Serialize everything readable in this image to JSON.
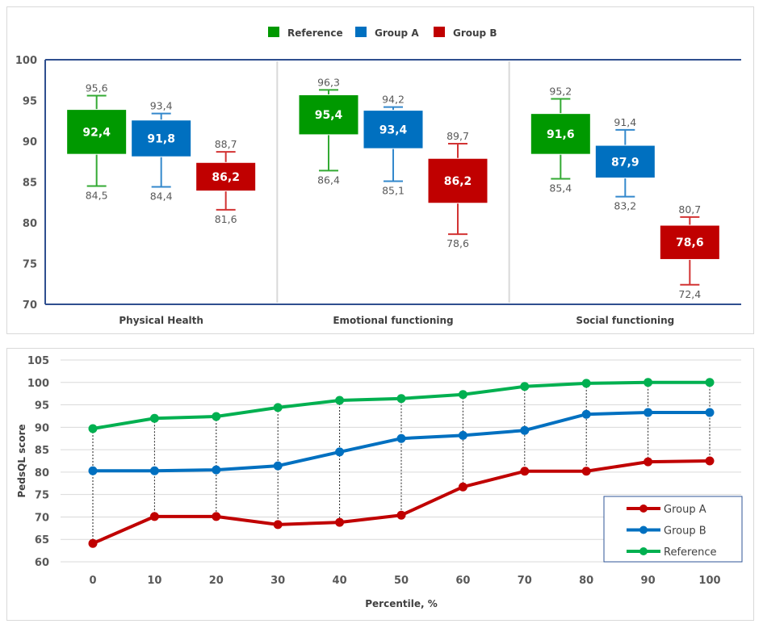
{
  "chart_data": [
    {
      "type": "box",
      "title": "",
      "xlabel": "",
      "ylabel": "",
      "ylim": [
        70,
        100
      ],
      "yticks": [
        70,
        75,
        80,
        85,
        90,
        95,
        100
      ],
      "grid": false,
      "legend_position": "top-center",
      "categories": [
        "Physical Health",
        "Emotional functioning",
        "Social functioning"
      ],
      "series": [
        {
          "name": "Reference",
          "color": "#009900",
          "boxes": [
            {
              "min": 84.5,
              "q1": 88.4,
              "median": 92.4,
              "q3": 93.9,
              "max": 95.6
            },
            {
              "min": 86.4,
              "q1": 90.8,
              "median": 95.4,
              "q3": 95.7,
              "max": 96.3
            },
            {
              "min": 85.4,
              "q1": 88.4,
              "median": 91.6,
              "q3": 93.4,
              "max": 95.2
            }
          ]
        },
        {
          "name": "Group A",
          "color": "#0070c0",
          "boxes": [
            {
              "min": 84.4,
              "q1": 88.1,
              "median": 91.8,
              "q3": 92.6,
              "max": 93.4
            },
            {
              "min": 85.1,
              "q1": 89.1,
              "median": 93.4,
              "q3": 93.8,
              "max": 94.2
            },
            {
              "min": 83.2,
              "q1": 85.5,
              "median": 87.9,
              "q3": 89.5,
              "max": 91.4
            }
          ]
        },
        {
          "name": "Group B",
          "color": "#c00000",
          "boxes": [
            {
              "min": 81.6,
              "q1": 83.9,
              "median": 86.2,
              "q3": 87.4,
              "max": 88.7
            },
            {
              "min": 78.6,
              "q1": 82.4,
              "median": 86.2,
              "q3": 87.9,
              "max": 89.7
            },
            {
              "min": 72.4,
              "q1": 75.5,
              "median": 78.6,
              "q3": 79.7,
              "max": 80.7
            }
          ]
        }
      ],
      "value_labels": {
        "min": [
          [
            "84,5",
            "84,4",
            "81,6"
          ],
          [
            "86,4",
            "85,1",
            "78,6"
          ],
          [
            "85,4",
            "83,2",
            "72,4"
          ]
        ],
        "median": [
          [
            "92,4",
            "91,8",
            "86,2"
          ],
          [
            "95,4",
            "93,4",
            "86,2"
          ],
          [
            "91,6",
            "87,9",
            "78,6"
          ]
        ],
        "max": [
          [
            "95,6",
            "93,4",
            "88,7"
          ],
          [
            "96,3",
            "94,2",
            "89,7"
          ],
          [
            "95,2",
            "91,4",
            "80,7"
          ]
        ]
      }
    },
    {
      "type": "line",
      "title": "",
      "xlabel": "Percentile, %",
      "ylabel": "PedsQL score",
      "x": [
        0,
        10,
        20,
        30,
        40,
        50,
        60,
        70,
        80,
        90,
        100
      ],
      "ylim": [
        60,
        105
      ],
      "yticks": [
        60,
        65,
        70,
        75,
        80,
        85,
        90,
        95,
        100,
        105
      ],
      "grid": true,
      "drop_lines": true,
      "legend_position": "bottom-right",
      "series": [
        {
          "name": "Group A",
          "color": "#c00000",
          "values": [
            64.1,
            70.1,
            70.1,
            68.3,
            68.8,
            70.4,
            76.7,
            80.2,
            80.2,
            82.3,
            82.5
          ]
        },
        {
          "name": "Group B",
          "color": "#0070c0",
          "values": [
            80.3,
            80.3,
            80.5,
            81.4,
            84.5,
            87.5,
            88.2,
            89.3,
            92.9,
            93.3,
            93.3
          ]
        },
        {
          "name": "Reference",
          "color": "#00b050",
          "values": [
            89.7,
            92.0,
            92.4,
            94.4,
            96.0,
            96.4,
            97.3,
            99.1,
            99.8,
            100.0,
            100.0
          ]
        }
      ]
    }
  ]
}
